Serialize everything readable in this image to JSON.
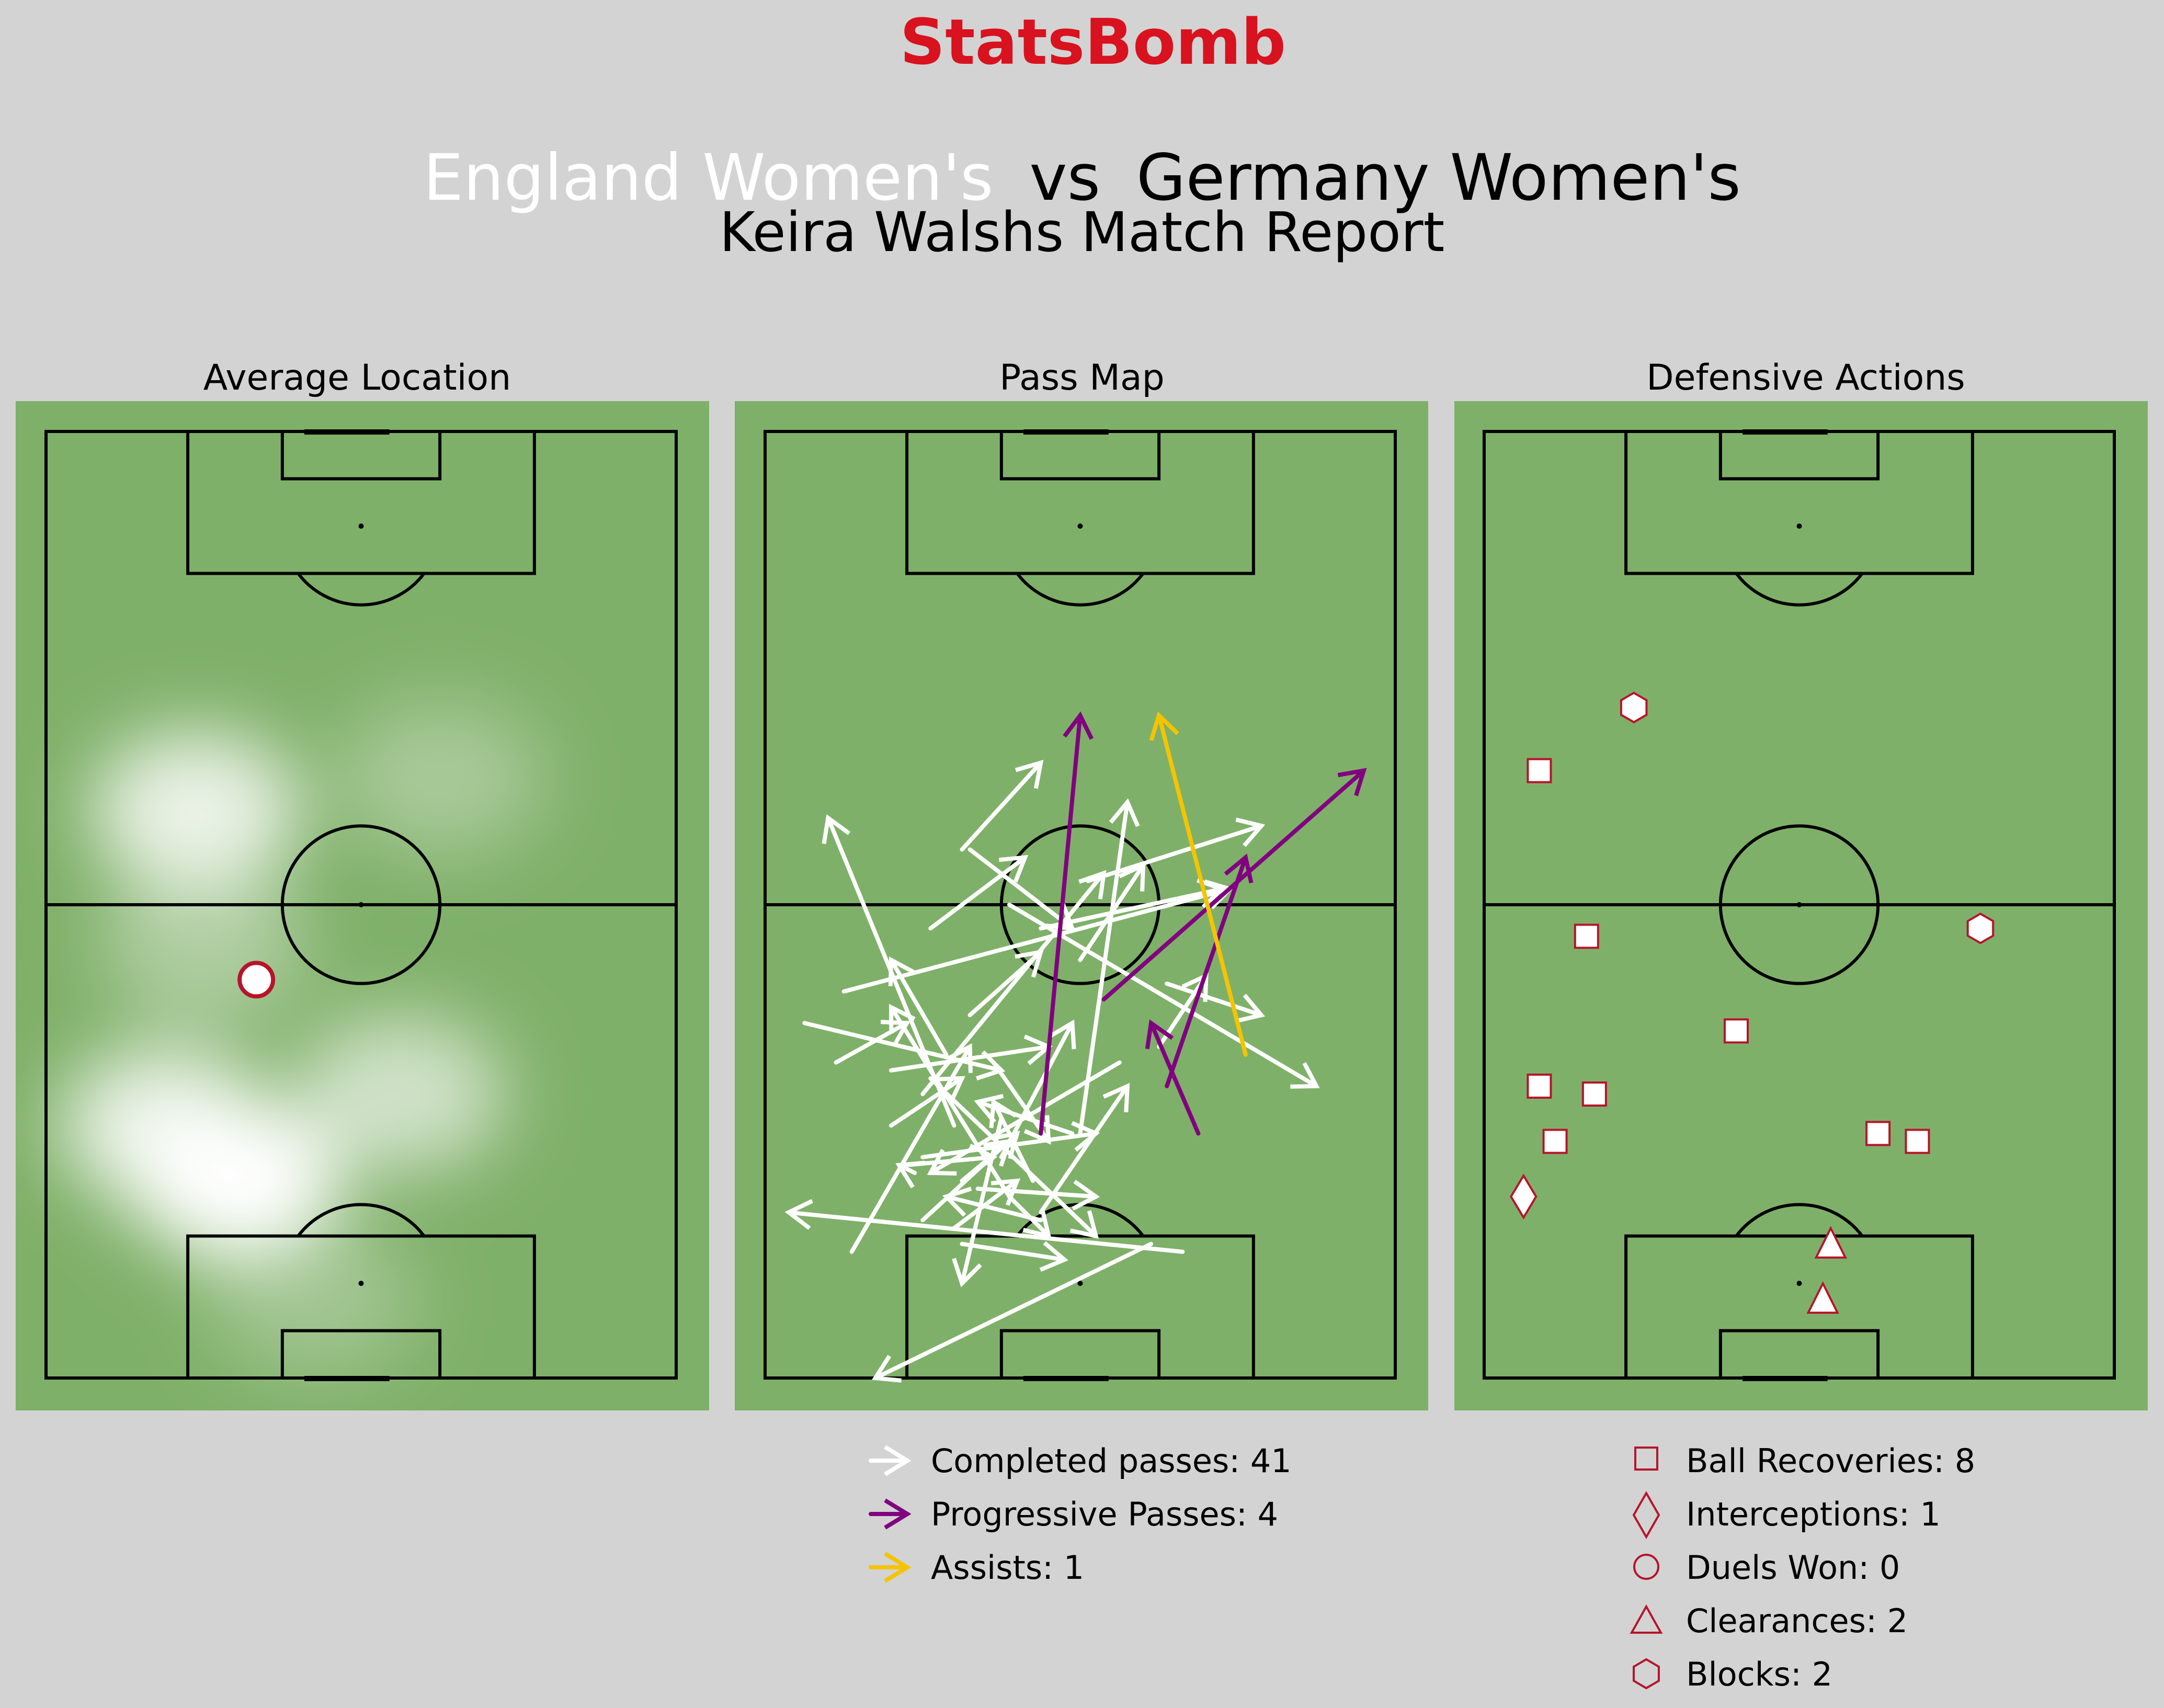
{
  "brand": {
    "logo_text": "StatsBomb",
    "color": "#d8121f"
  },
  "header": {
    "home_team": "England Women's",
    "connector": "vs",
    "away_team": "Germany Women's",
    "subtitle": "Keira Walshs Match Report"
  },
  "colors": {
    "background": "#d3d3d3",
    "pitch": "#7fb069",
    "lines": "#000000",
    "marker_edge": "#b5152b",
    "completed": "#ffffff",
    "progressive": "#800080",
    "assist": "#f5c400"
  },
  "panels": {
    "average_location": {
      "title": "Average Location"
    },
    "pass_map": {
      "title": "Pass Map"
    },
    "defensive_actions": {
      "title": "Defensive Actions"
    }
  },
  "chart_data": [
    {
      "type": "scatter",
      "title": "Average Location",
      "pitch": {
        "length": 120,
        "width": 80,
        "orientation": "vertical",
        "attacking": "up"
      },
      "average_position": {
        "x": 50.5,
        "y": 26.7
      },
      "heatmap_hotspots": [
        {
          "x": 25,
          "y": 24,
          "intensity": 1.0
        },
        {
          "x": 32,
          "y": 15,
          "intensity": 0.8
        },
        {
          "x": 36,
          "y": 45,
          "intensity": 0.6
        },
        {
          "x": 55,
          "y": 20,
          "intensity": 0.35
        },
        {
          "x": 72,
          "y": 19,
          "intensity": 0.8
        },
        {
          "x": 76,
          "y": 50,
          "intensity": 0.3
        },
        {
          "x": 10,
          "y": 34,
          "intensity": 0.25
        }
      ]
    },
    {
      "type": "scatter",
      "title": "Pass Map",
      "pitch": {
        "length": 120,
        "width": 80,
        "orientation": "vertical",
        "attacking": "up"
      },
      "completed_passes": [
        [
          23,
          31,
          47,
          16
        ],
        [
          17,
          49,
          0,
          14
        ],
        [
          49,
          10,
          62,
          59
        ],
        [
          40,
          45,
          26,
          21
        ],
        [
          50,
          51,
          46,
          63
        ],
        [
          36,
          20,
          64,
          43
        ],
        [
          26,
          19,
          27,
          17
        ],
        [
          32,
          24,
          71,
          8
        ],
        [
          31,
          40,
          73,
          46
        ],
        [
          42,
          50,
          51,
          56
        ],
        [
          16,
          53,
          21,
          3
        ],
        [
          57,
          35,
          62,
          58
        ],
        [
          28,
          20,
          31,
          42
        ],
        [
          32,
          16,
          38,
          25
        ],
        [
          57,
          21,
          66,
          33
        ],
        [
          67,
          25,
          78,
          35
        ],
        [
          60,
          31,
          37,
          70
        ],
        [
          53,
          40,
          65,
          48
        ],
        [
          63,
          41,
          70,
          63
        ],
        [
          67,
          26,
          57,
          39
        ],
        [
          46,
          26,
          54,
          35
        ],
        [
          21,
          35,
          37,
          46
        ],
        [
          20,
          20,
          31,
          32
        ],
        [
          28,
          30,
          45,
          39
        ],
        [
          20,
          35,
          23,
          23
        ],
        [
          16,
          11,
          42,
          26
        ],
        [
          27,
          18,
          28,
          29
        ],
        [
          19,
          24,
          25,
          32
        ],
        [
          38,
          21,
          18,
          42
        ],
        [
          33,
          30,
          12,
          25
        ],
        [
          24,
          27,
          23,
          42
        ],
        [
          17,
          25,
          15,
          38
        ],
        [
          25,
          25,
          30,
          31
        ],
        [
          41,
          23,
          53,
          16
        ],
        [
          25,
          34,
          35,
          29
        ],
        [
          40,
          9,
          45,
          18
        ],
        [
          23,
          31,
          18,
          36
        ],
        [
          40,
          29,
          30,
          36
        ],
        [
          31,
          39,
          35,
          27
        ],
        [
          39,
          16,
          42,
          36
        ],
        [
          45,
          5,
          39,
          30
        ]
      ],
      "progressive_passes": [
        [
          31,
          35,
          84,
          40
        ],
        [
          31,
          55,
          45,
          49
        ],
        [
          48,
          43,
          77,
          76
        ],
        [
          37,
          51,
          66,
          61
        ]
      ],
      "assists": [
        [
          41,
          61,
          84,
          50
        ]
      ]
    },
    {
      "type": "scatter",
      "title": "Defensive Actions",
      "pitch": {
        "length": 120,
        "width": 80,
        "orientation": "vertical",
        "attacking": "up"
      },
      "ball_recoveries": [
        [
          77,
          7
        ],
        [
          56,
          13
        ],
        [
          44,
          32
        ],
        [
          37,
          7
        ],
        [
          36,
          14
        ],
        [
          30,
          9
        ],
        [
          31,
          50
        ],
        [
          30,
          55
        ]
      ],
      "interceptions": [
        [
          23,
          5
        ]
      ],
      "duels_won": [],
      "clearances": [
        [
          17,
          44
        ],
        [
          10,
          43
        ]
      ],
      "blocks": [
        [
          85,
          19
        ],
        [
          57,
          63
        ]
      ]
    }
  ],
  "legend_passes": {
    "items": [
      {
        "label": "Completed passes: 41",
        "color": "#ffffff"
      },
      {
        "label": "Progressive Passes: 4",
        "color": "#800080"
      },
      {
        "label": "Assists: 1",
        "color": "#f5c400"
      }
    ]
  },
  "legend_defensive": {
    "items": [
      {
        "label": "Ball Recoveries: 8",
        "icon": "square-icon"
      },
      {
        "label": "Interceptions: 1",
        "icon": "diamond-icon"
      },
      {
        "label": "Duels Won: 0",
        "icon": "circle-icon"
      },
      {
        "label": "Clearances: 2",
        "icon": "triangle-icon"
      },
      {
        "label": "Blocks: 2",
        "icon": "hexagon-icon"
      }
    ]
  }
}
